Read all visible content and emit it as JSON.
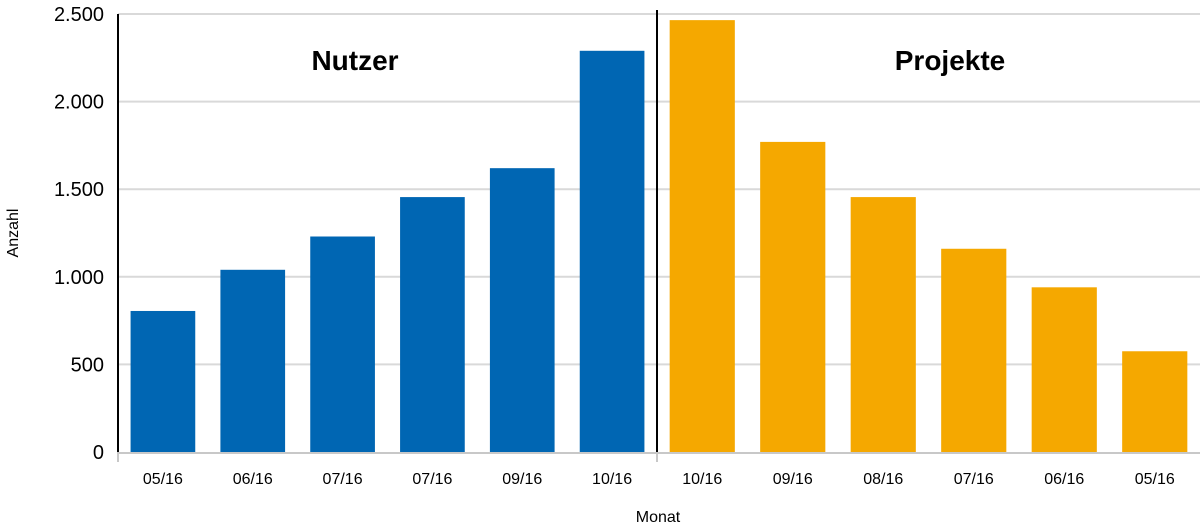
{
  "chart_data": {
    "type": "bar",
    "xlabel": "Monat",
    "ylabel": "Anzahl",
    "ylim": [
      0,
      2500
    ],
    "yticks": [
      0,
      500,
      1000,
      1500,
      2000,
      2500
    ],
    "ytick_labels": [
      "0",
      "500",
      "1.000",
      "1.500",
      "2.000",
      "2.500"
    ],
    "grid": true,
    "panels": [
      {
        "title": "Nutzer",
        "color": "#0066b3",
        "categories": [
          "05/16",
          "06/16",
          "07/16",
          "07/16",
          "09/16",
          "10/16"
        ],
        "values": [
          805,
          1040,
          1230,
          1455,
          1620,
          2290
        ]
      },
      {
        "title": "Projekte",
        "color": "#f5a800",
        "categories": [
          "10/16",
          "09/16",
          "08/16",
          "07/16",
          "06/16",
          "05/16"
        ],
        "values": [
          2465,
          1770,
          1455,
          1160,
          940,
          575
        ]
      }
    ]
  }
}
